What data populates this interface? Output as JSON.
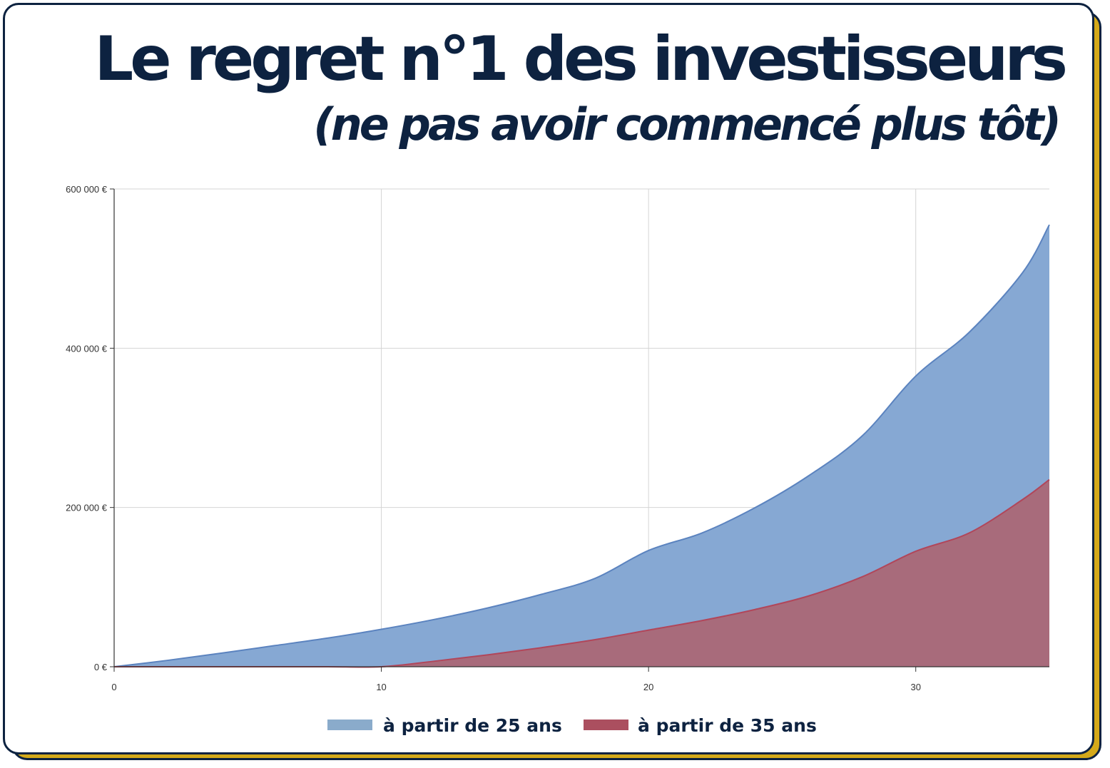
{
  "header": {
    "title": "Le regret n°1 des investisseurs",
    "subtitle": "(ne pas avoir commencé plus tôt)"
  },
  "colors": {
    "navy": "#0d2240",
    "gold": "#d4a91a",
    "blue_fill": "#86a8d3",
    "blue_line": "#5b83bf",
    "red_fill": "#ab6673",
    "red_line": "#b1465a",
    "legend_blue": "#8aabcb",
    "legend_red": "#ab4f5f"
  },
  "chart_data": {
    "type": "area",
    "title": "",
    "xlabel": "",
    "ylabel": "",
    "xlim": [
      0,
      35
    ],
    "ylim": [
      0,
      600000
    ],
    "x_ticks": [
      "0",
      "10",
      "20",
      "30"
    ],
    "x_tick_values": [
      0,
      10,
      20,
      30
    ],
    "y_ticks": [
      "0 €",
      "200 000 €",
      "400 000 €",
      "600 000 €"
    ],
    "y_tick_values": [
      0,
      200000,
      400000,
      600000
    ],
    "grid": true,
    "legend_position": "bottom",
    "x": [
      0,
      2,
      4,
      6,
      8,
      10,
      12,
      14,
      16,
      18,
      20,
      22,
      24,
      26,
      28,
      30,
      32,
      34,
      35
    ],
    "series": [
      {
        "name": "à partir de 25 ans",
        "values": [
          0,
          8000,
          17000,
          26500,
          36000,
          47000,
          59500,
          74000,
          91000,
          111000,
          146000,
          168000,
          200000,
          240000,
          290000,
          365000,
          420000,
          495000,
          555000
        ]
      },
      {
        "name": "à partir de 35 ans",
        "values": [
          0,
          0,
          0,
          0,
          0,
          0,
          7000,
          15000,
          24000,
          34000,
          46000,
          58000,
          72000,
          89000,
          113000,
          145000,
          168000,
          210000,
          235000
        ]
      }
    ]
  }
}
